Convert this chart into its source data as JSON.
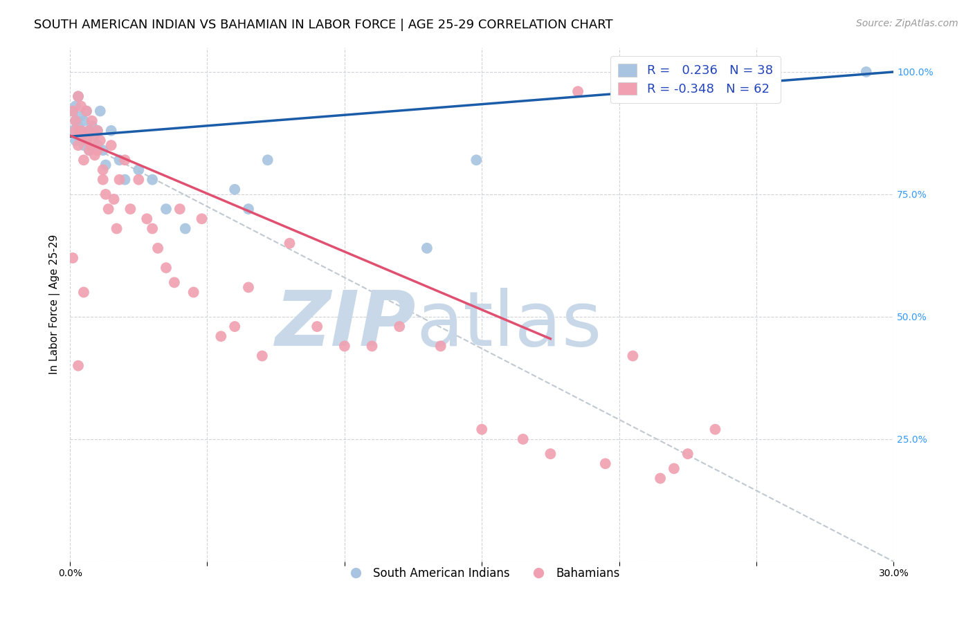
{
  "title": "SOUTH AMERICAN INDIAN VS BAHAMIAN IN LABOR FORCE | AGE 25-29 CORRELATION CHART",
  "source": "Source: ZipAtlas.com",
  "ylabel": "In Labor Force | Age 25-29",
  "xlim": [
    0.0,
    0.3
  ],
  "ylim": [
    0.0,
    1.05
  ],
  "xticks": [
    0.0,
    0.05,
    0.1,
    0.15,
    0.2,
    0.25,
    0.3
  ],
  "xticklabels": [
    "0.0%",
    "",
    "",
    "",
    "",
    "",
    "30.0%"
  ],
  "yticks": [
    0.0,
    0.25,
    0.5,
    0.75,
    1.0
  ],
  "yticklabels": [
    "",
    "25.0%",
    "50.0%",
    "75.0%",
    "100.0%"
  ],
  "blue_R": 0.236,
  "blue_N": 38,
  "pink_R": -0.348,
  "pink_N": 62,
  "blue_color": "#a8c4e0",
  "pink_color": "#f0a0b0",
  "blue_line_color": "#1a5ca8",
  "pink_line_color": "#e05070",
  "dashed_line_color": "#c0c8d0",
  "watermark_zip": "ZIP",
  "watermark_atlas": "atlas",
  "watermark_color": "#c8d8e8",
  "blue_scatter_x": [
    0.001,
    0.001,
    0.002,
    0.002,
    0.002,
    0.003,
    0.003,
    0.003,
    0.004,
    0.004,
    0.005,
    0.005,
    0.005,
    0.006,
    0.006,
    0.007,
    0.007,
    0.008,
    0.009,
    0.01,
    0.01,
    0.011,
    0.012,
    0.013,
    0.015,
    0.018,
    0.02,
    0.025,
    0.03,
    0.035,
    0.042,
    0.06,
    0.065,
    0.072,
    0.13,
    0.148,
    0.21,
    0.29
  ],
  "blue_scatter_y": [
    0.88,
    0.92,
    0.86,
    0.9,
    0.93,
    0.87,
    0.89,
    0.95,
    0.88,
    0.91,
    0.85,
    0.87,
    0.9,
    0.86,
    0.92,
    0.84,
    0.88,
    0.89,
    0.87,
    0.85,
    0.88,
    0.92,
    0.84,
    0.81,
    0.88,
    0.82,
    0.78,
    0.8,
    0.78,
    0.72,
    0.68,
    0.76,
    0.72,
    0.82,
    0.64,
    0.82,
    0.95,
    1.0
  ],
  "pink_scatter_x": [
    0.001,
    0.001,
    0.002,
    0.002,
    0.003,
    0.003,
    0.003,
    0.004,
    0.004,
    0.005,
    0.005,
    0.005,
    0.006,
    0.006,
    0.007,
    0.007,
    0.008,
    0.008,
    0.009,
    0.009,
    0.01,
    0.01,
    0.011,
    0.012,
    0.012,
    0.013,
    0.014,
    0.015,
    0.016,
    0.017,
    0.018,
    0.02,
    0.022,
    0.025,
    0.028,
    0.03,
    0.032,
    0.035,
    0.038,
    0.04,
    0.045,
    0.048,
    0.055,
    0.06,
    0.065,
    0.07,
    0.08,
    0.09,
    0.1,
    0.11,
    0.12,
    0.135,
    0.15,
    0.165,
    0.175,
    0.185,
    0.195,
    0.205,
    0.215,
    0.22,
    0.225,
    0.235
  ],
  "pink_scatter_y": [
    0.62,
    0.92,
    0.9,
    0.88,
    0.95,
    0.85,
    0.4,
    0.93,
    0.88,
    0.87,
    0.82,
    0.55,
    0.86,
    0.92,
    0.84,
    0.88,
    0.9,
    0.85,
    0.87,
    0.83,
    0.88,
    0.84,
    0.86,
    0.8,
    0.78,
    0.75,
    0.72,
    0.85,
    0.74,
    0.68,
    0.78,
    0.82,
    0.72,
    0.78,
    0.7,
    0.68,
    0.64,
    0.6,
    0.57,
    0.72,
    0.55,
    0.7,
    0.46,
    0.48,
    0.56,
    0.42,
    0.65,
    0.48,
    0.44,
    0.44,
    0.48,
    0.44,
    0.27,
    0.25,
    0.22,
    0.96,
    0.2,
    0.42,
    0.17,
    0.19,
    0.22,
    0.27
  ],
  "blue_line_x0": 0.0,
  "blue_line_x1": 0.3,
  "blue_line_y0": 0.868,
  "blue_line_y1": 1.0,
  "pink_line_x0": 0.0,
  "pink_line_x1": 0.175,
  "pink_line_y0": 0.87,
  "pink_line_y1": 0.455,
  "dashed_line_x0": 0.0,
  "dashed_line_x1": 0.3,
  "dashed_line_y0": 0.87,
  "dashed_line_y1": 0.0,
  "grid_color": "#d0d4d8",
  "background_color": "#ffffff",
  "title_fontsize": 13,
  "axis_label_fontsize": 11,
  "tick_fontsize": 10,
  "legend_fontsize": 13,
  "source_fontsize": 10
}
